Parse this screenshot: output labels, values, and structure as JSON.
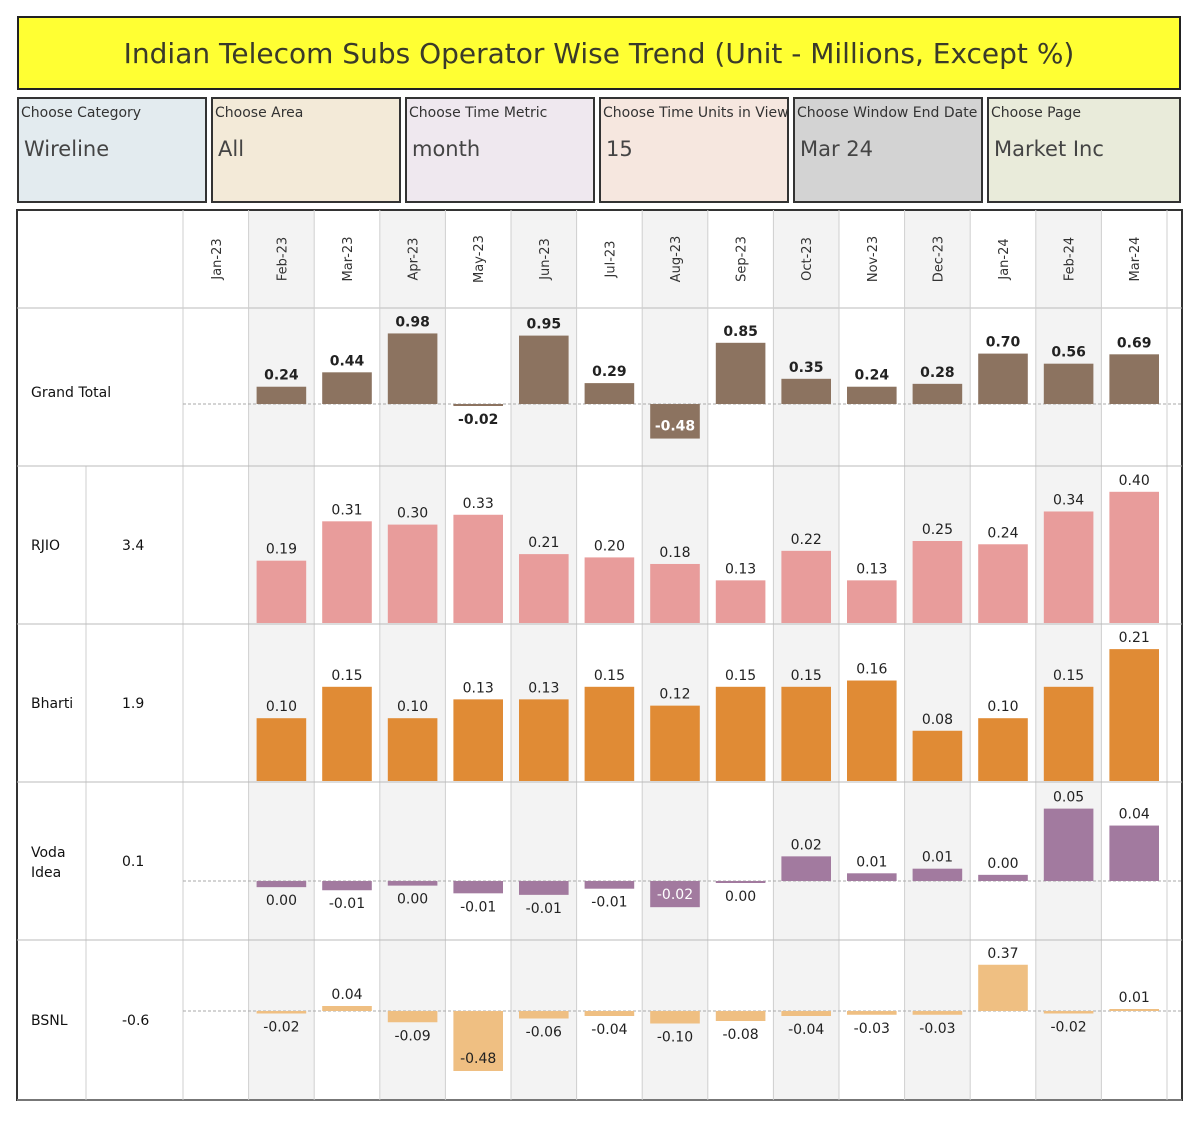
{
  "title": "Indian Telecom Subs Operator Wise Trend (Unit - Millions, Except %)",
  "filters": [
    {
      "label": "Choose Category",
      "value": "Wireline",
      "bg": "#e3ebef"
    },
    {
      "label": "Choose Area",
      "value": "All",
      "bg": "#f3ead8"
    },
    {
      "label": "Choose Time Metric",
      "value": "month",
      "bg": "#efe8ef"
    },
    {
      "label": "Choose Time Units in View",
      "value": "15",
      "bg": "#f6e7df"
    },
    {
      "label": "Choose Window End Date",
      "value": "Mar 24",
      "bg": "#d3d3d3"
    },
    {
      "label": "Choose Page",
      "value": "Market Inc",
      "bg": "#e9ebda"
    }
  ],
  "chart_data": {
    "type": "bar",
    "categories": [
      "Jan-23",
      "Feb-23",
      "Mar-23",
      "Apr-23",
      "May-23",
      "Jun-23",
      "Jul-23",
      "Aug-23",
      "Sep-23",
      "Oct-23",
      "Nov-23",
      "Dec-23",
      "Jan-24",
      "Feb-24",
      "Mar-24"
    ],
    "series": [
      {
        "name": "Grand Total",
        "total": "",
        "color": "#8c7360",
        "values": [
          null,
          0.24,
          0.44,
          0.98,
          -0.02,
          0.95,
          0.29,
          -0.48,
          0.85,
          0.35,
          0.24,
          0.28,
          0.7,
          0.56,
          0.69
        ],
        "labels": [
          "",
          "0.24",
          "0.44",
          "0.98",
          "-0.02",
          "0.95",
          "0.29",
          "-0.48",
          "0.85",
          "0.35",
          "0.24",
          "0.28",
          "0.70",
          "0.56",
          "0.69"
        ]
      },
      {
        "name": "RJIO",
        "total": "3.4",
        "color": "#e89c9b",
        "values": [
          null,
          0.19,
          0.31,
          0.3,
          0.33,
          0.21,
          0.2,
          0.18,
          0.13,
          0.22,
          0.13,
          0.25,
          0.24,
          0.34,
          0.4
        ],
        "labels": [
          "",
          "0.19",
          "0.31",
          "0.30",
          "0.33",
          "0.21",
          "0.20",
          "0.18",
          "0.13",
          "0.22",
          "0.13",
          "0.25",
          "0.24",
          "0.34",
          "0.40"
        ]
      },
      {
        "name": "Bharti",
        "total": "1.9",
        "color": "#e08b35",
        "values": [
          null,
          0.1,
          0.15,
          0.1,
          0.13,
          0.13,
          0.15,
          0.12,
          0.15,
          0.15,
          0.16,
          0.08,
          0.1,
          0.15,
          0.21
        ],
        "labels": [
          "",
          "0.10",
          "0.15",
          "0.10",
          "0.13",
          "0.13",
          "0.15",
          "0.12",
          "0.15",
          "0.15",
          "0.16",
          "0.08",
          "0.10",
          "0.15",
          "0.21"
        ]
      },
      {
        "name": "Voda Idea",
        "total": "0.1",
        "color": "#a27a9f",
        "values": [
          null,
          -0.004,
          -0.006,
          -0.003,
          -0.008,
          -0.009,
          -0.005,
          -0.017,
          -0.001,
          0.016,
          0.005,
          0.008,
          0.004,
          0.047,
          0.036
        ],
        "labels": [
          "",
          "0.00",
          "-0.01",
          "0.00",
          "-0.01",
          "-0.01",
          "-0.01",
          "-0.02",
          "0.00",
          "0.02",
          "0.01",
          "0.01",
          "0.00",
          "0.05",
          "0.04"
        ]
      },
      {
        "name": "BSNL",
        "total": "-0.6",
        "color": "#efbf82",
        "values": [
          null,
          -0.02,
          0.04,
          -0.09,
          -0.48,
          -0.06,
          -0.04,
          -0.1,
          -0.08,
          -0.04,
          -0.03,
          -0.03,
          0.37,
          -0.02,
          0.01
        ],
        "labels": [
          "",
          "-0.02",
          "0.04",
          "-0.09",
          "-0.48",
          "-0.06",
          "-0.04",
          "-0.10",
          "-0.08",
          "-0.04",
          "-0.03",
          "-0.03",
          "0.37",
          "-0.02",
          "0.01"
        ]
      }
    ]
  }
}
